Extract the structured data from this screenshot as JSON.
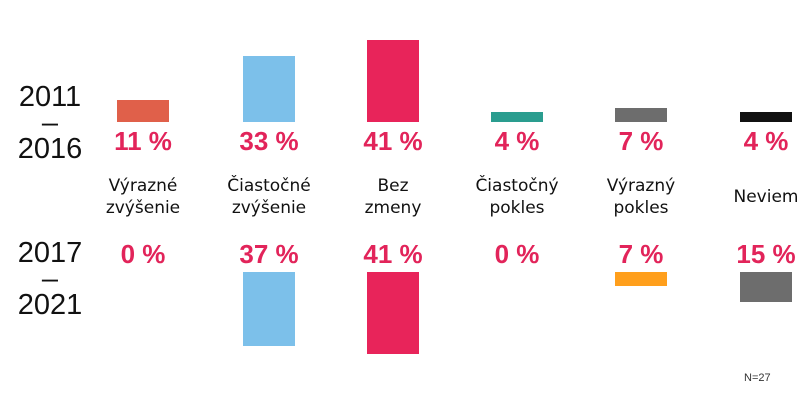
{
  "chart_data": {
    "type": "bar",
    "categories": [
      [
        "Výrazné",
        "zvýšenie"
      ],
      [
        "Čiastočné",
        "zvýšenie"
      ],
      [
        "Bez",
        "zmeny"
      ],
      [
        "Čiastočný",
        "pokles"
      ],
      [
        "Výrazný",
        "pokles"
      ],
      [
        "Neviem"
      ]
    ],
    "unit_suffix": " %",
    "series": [
      {
        "name": [
          "2011",
          "–",
          "2016"
        ],
        "values": [
          11,
          33,
          41,
          4,
          7,
          4
        ],
        "colors": [
          "#e0604a",
          "#7cc0ea",
          "#e8245a",
          "#2a9d8f",
          "#6d6d6d",
          "#111111"
        ]
      },
      {
        "name": [
          "2017",
          "–",
          "2021"
        ],
        "values": [
          0,
          37,
          41,
          0,
          7,
          15
        ],
        "colors": [
          "#e0604a",
          "#7cc0ea",
          "#e8245a",
          "#2a9d8f",
          "#ff9f1c",
          "#6d6d6d"
        ]
      }
    ],
    "note": "N=27"
  }
}
